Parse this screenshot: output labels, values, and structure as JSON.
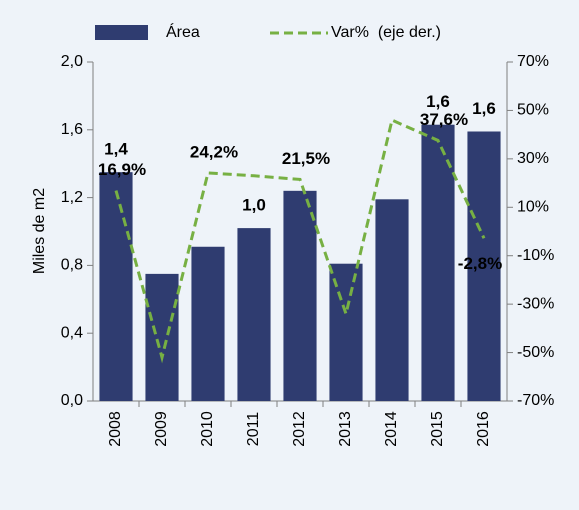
{
  "chart_data": {
    "type": "bar_line",
    "y_axis_label": "Miles de m2",
    "categories": [
      "2008",
      "2009",
      "2010",
      "2011",
      "2012",
      "2013",
      "2014",
      "2015",
      "2016"
    ],
    "series": [
      {
        "name": "Área",
        "type": "bar",
        "color": "#2f3c70",
        "values": [
          1.35,
          0.75,
          0.91,
          1.02,
          1.24,
          0.81,
          1.19,
          1.63,
          1.59
        ],
        "value_labels": [
          "1,4",
          null,
          null,
          "1,0",
          null,
          null,
          null,
          "1,6",
          "1,6"
        ]
      },
      {
        "name": "Var%  (eje der.)",
        "type": "line",
        "axis": "y2",
        "color": "#77b043",
        "dashed": true,
        "values": [
          16.9,
          -52,
          24.2,
          23,
          21.5,
          -34,
          46,
          37.6,
          -2.8
        ],
        "value_labels": [
          "16,9%",
          null,
          "24,2%",
          null,
          "21,5%",
          null,
          null,
          "37,6%",
          "-2,8%"
        ]
      }
    ],
    "ylim": [
      0,
      2
    ],
    "yticks": [
      {
        "value": 0,
        "label": "0,0"
      },
      {
        "value": 0.4,
        "label": "0,4"
      },
      {
        "value": 0.8,
        "label": "0,8"
      },
      {
        "value": 1.2,
        "label": "1,2"
      },
      {
        "value": 1.6,
        "label": "1,6"
      },
      {
        "value": 2,
        "label": "2,0"
      }
    ],
    "y2lim": [
      -70,
      70
    ],
    "y2ticks": [
      {
        "value": -70,
        "label": "-70%"
      },
      {
        "value": -50,
        "label": "-50%"
      },
      {
        "value": -30,
        "label": "-30%"
      },
      {
        "value": -10,
        "label": "-10%"
      },
      {
        "value": 10,
        "label": "10%"
      },
      {
        "value": 30,
        "label": "30%"
      },
      {
        "value": 50,
        "label": "50%"
      },
      {
        "value": 70,
        "label": "70%"
      }
    ],
    "legend": "top"
  }
}
